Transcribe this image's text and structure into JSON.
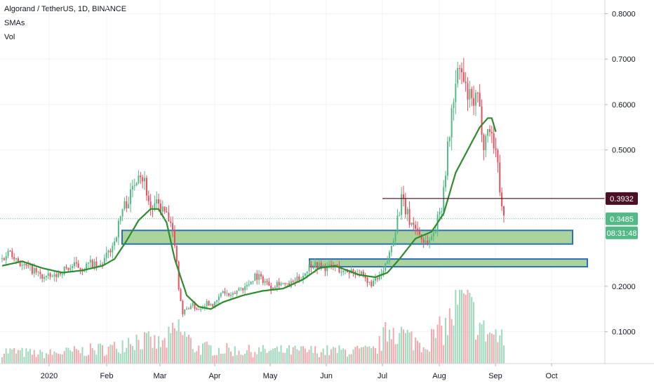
{
  "legend": {
    "symbol": "Algorand / TetherUS, 1D, BINANCE",
    "sma": "SMAs",
    "vol": "Vol"
  },
  "chart_data": {
    "type": "candlestick",
    "symbol": "Algorand / TetherUS",
    "interval": "1D",
    "exchange": "BINANCE",
    "x_ticks": [
      "2020",
      "Feb",
      "Mar",
      "Apr",
      "May",
      "Jun",
      "Jul",
      "Aug",
      "Sep",
      "Oct"
    ],
    "y_ticks": [
      "0.8000",
      "0.7000",
      "0.6000",
      "0.5000",
      "0.2000",
      "0.1000"
    ],
    "ylim": [
      0.03,
      0.83
    ],
    "last_price": "0.3485",
    "countdown": "08:31:48",
    "level_price": "0.3932",
    "zones": [
      {
        "from": 0.293,
        "to": 0.323
      },
      {
        "from": 0.243,
        "to": 0.26
      }
    ],
    "colors": {
      "up": "#53b987",
      "down": "#eb4d5c",
      "sma": "#2e8b2e",
      "zone_fill": "#9ccc8c",
      "zone_border": "#2c6fb7",
      "level": "#4a0f24"
    },
    "ohlc_anchors": [
      [
        0,
        0.26
      ],
      [
        4,
        0.28
      ],
      [
        10,
        0.245
      ],
      [
        14,
        0.24
      ],
      [
        20,
        0.22
      ],
      [
        26,
        0.22
      ],
      [
        30,
        0.235
      ],
      [
        36,
        0.245
      ],
      [
        40,
        0.24
      ],
      [
        44,
        0.25
      ],
      [
        48,
        0.24
      ],
      [
        52,
        0.265
      ],
      [
        56,
        0.3
      ],
      [
        60,
        0.37
      ],
      [
        64,
        0.4
      ],
      [
        68,
        0.46
      ],
      [
        71,
        0.43
      ],
      [
        74,
        0.37
      ],
      [
        78,
        0.38
      ],
      [
        82,
        0.355
      ],
      [
        86,
        0.3
      ],
      [
        88,
        0.2
      ],
      [
        90,
        0.14
      ],
      [
        94,
        0.16
      ],
      [
        98,
        0.15
      ],
      [
        102,
        0.165
      ],
      [
        106,
        0.16
      ],
      [
        110,
        0.19
      ],
      [
        114,
        0.175
      ],
      [
        118,
        0.195
      ],
      [
        122,
        0.2
      ],
      [
        126,
        0.225
      ],
      [
        130,
        0.215
      ],
      [
        134,
        0.2
      ],
      [
        138,
        0.21
      ],
      [
        142,
        0.2
      ],
      [
        146,
        0.21
      ],
      [
        150,
        0.225
      ],
      [
        154,
        0.25
      ],
      [
        158,
        0.245
      ],
      [
        162,
        0.24
      ],
      [
        166,
        0.245
      ],
      [
        170,
        0.23
      ],
      [
        174,
        0.235
      ],
      [
        178,
        0.23
      ],
      [
        182,
        0.205
      ],
      [
        186,
        0.21
      ],
      [
        190,
        0.23
      ],
      [
        193,
        0.27
      ],
      [
        196,
        0.33
      ],
      [
        199,
        0.39
      ],
      [
        203,
        0.345
      ],
      [
        206,
        0.33
      ],
      [
        210,
        0.3
      ],
      [
        213,
        0.3
      ],
      [
        216,
        0.33
      ],
      [
        219,
        0.38
      ],
      [
        222,
        0.5
      ],
      [
        225,
        0.62
      ],
      [
        228,
        0.68
      ],
      [
        231,
        0.63
      ],
      [
        234,
        0.6
      ],
      [
        237,
        0.61
      ],
      [
        240,
        0.52
      ],
      [
        243,
        0.55
      ],
      [
        246,
        0.5
      ],
      [
        248,
        0.42
      ],
      [
        250,
        0.35
      ]
    ],
    "sma_anchors": [
      [
        0,
        0.245
      ],
      [
        10,
        0.255
      ],
      [
        20,
        0.24
      ],
      [
        30,
        0.23
      ],
      [
        40,
        0.235
      ],
      [
        50,
        0.245
      ],
      [
        56,
        0.26
      ],
      [
        62,
        0.3
      ],
      [
        68,
        0.345
      ],
      [
        74,
        0.37
      ],
      [
        78,
        0.37
      ],
      [
        82,
        0.34
      ],
      [
        86,
        0.26
      ],
      [
        92,
        0.18
      ],
      [
        98,
        0.155
      ],
      [
        104,
        0.15
      ],
      [
        110,
        0.165
      ],
      [
        120,
        0.18
      ],
      [
        130,
        0.19
      ],
      [
        140,
        0.195
      ],
      [
        150,
        0.215
      ],
      [
        158,
        0.24
      ],
      [
        166,
        0.245
      ],
      [
        172,
        0.235
      ],
      [
        178,
        0.225
      ],
      [
        186,
        0.22
      ],
      [
        192,
        0.23
      ],
      [
        198,
        0.26
      ],
      [
        206,
        0.305
      ],
      [
        214,
        0.32
      ],
      [
        220,
        0.36
      ],
      [
        226,
        0.45
      ],
      [
        232,
        0.5
      ],
      [
        238,
        0.55
      ],
      [
        242,
        0.57
      ],
      [
        244,
        0.57
      ],
      [
        246,
        0.54
      ]
    ],
    "volume_anchors": [
      [
        0,
        0.2
      ],
      [
        20,
        0.15
      ],
      [
        40,
        0.2
      ],
      [
        56,
        0.25
      ],
      [
        64,
        0.4
      ],
      [
        72,
        0.35
      ],
      [
        80,
        0.3
      ],
      [
        88,
        0.55
      ],
      [
        96,
        0.25
      ],
      [
        120,
        0.2
      ],
      [
        150,
        0.2
      ],
      [
        170,
        0.2
      ],
      [
        186,
        0.2
      ],
      [
        194,
        0.6
      ],
      [
        200,
        0.45
      ],
      [
        210,
        0.3
      ],
      [
        222,
        0.6
      ],
      [
        228,
        1.0
      ],
      [
        234,
        0.8
      ],
      [
        240,
        0.5
      ],
      [
        246,
        0.45
      ],
      [
        250,
        0.35
      ]
    ]
  }
}
